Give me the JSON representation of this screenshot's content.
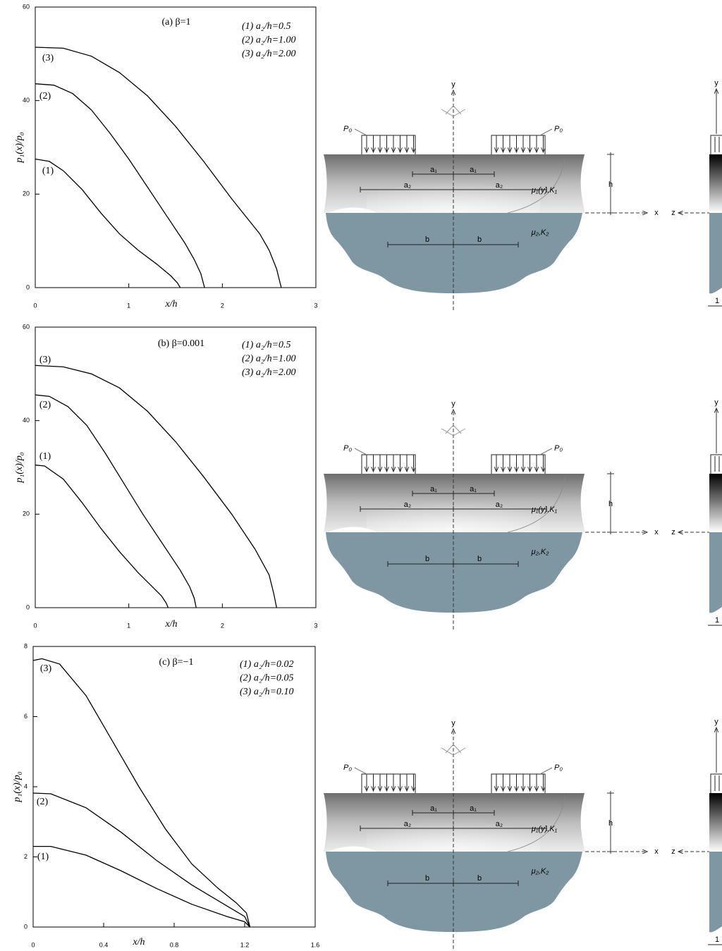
{
  "chart_data": [
    {
      "type": "line",
      "title": "(a) β=1",
      "x_label": "x/h",
      "y_label": "p₁(x)/p₀",
      "xlim": [
        0,
        3
      ],
      "ylim": [
        0,
        60
      ],
      "xticks": [
        0,
        1,
        2,
        3
      ],
      "yticks": [
        0,
        20,
        40,
        60
      ],
      "series": [
        {
          "name": "(1) a₂/h=0.5",
          "label": "(1)",
          "color": "#000000",
          "x": [
            0,
            0.15,
            0.3,
            0.5,
            0.7,
            0.9,
            1.1,
            1.3,
            1.45,
            1.52,
            1.55
          ],
          "values": [
            27.5,
            27,
            25,
            21,
            16,
            11.5,
            8,
            5,
            2.5,
            1,
            0
          ]
        },
        {
          "name": "(2) a₂/h=1.00",
          "label": "(2)",
          "color": "#000000",
          "x": [
            0,
            0.2,
            0.4,
            0.6,
            0.8,
            1.0,
            1.2,
            1.4,
            1.6,
            1.7,
            1.77,
            1.81
          ],
          "values": [
            43.6,
            43.3,
            41.5,
            38,
            33,
            27.5,
            21.5,
            15.5,
            9.5,
            6,
            3,
            0
          ]
        },
        {
          "name": "(3) a₂/h=2.00",
          "label": "(3)",
          "color": "#000000",
          "x": [
            0,
            0.3,
            0.6,
            0.9,
            1.2,
            1.5,
            1.8,
            2.1,
            2.4,
            2.5,
            2.58,
            2.63
          ],
          "values": [
            51.4,
            51.2,
            49.5,
            46,
            41,
            34.5,
            27,
            19,
            11.5,
            8,
            4,
            0
          ]
        }
      ]
    },
    {
      "type": "line",
      "title": "(b) β=0.001",
      "x_label": "x/h",
      "y_label": "p₁(x)/p₀",
      "xlim": [
        0,
        3
      ],
      "ylim": [
        0,
        60
      ],
      "xticks": [
        0,
        1,
        2,
        3
      ],
      "yticks": [
        0,
        20,
        40,
        60
      ],
      "series": [
        {
          "name": "(1) a₂/h=0.5",
          "label": "(1)",
          "color": "#000000",
          "x": [
            0,
            0.1,
            0.3,
            0.5,
            0.7,
            0.9,
            1.1,
            1.25,
            1.35,
            1.4,
            1.42
          ],
          "values": [
            30.5,
            30.3,
            27.5,
            22.5,
            17,
            12,
            7.5,
            4.5,
            2.5,
            1,
            0
          ]
        },
        {
          "name": "(2) a₂/h=1.00",
          "label": "(2)",
          "color": "#000000",
          "x": [
            0,
            0.15,
            0.35,
            0.55,
            0.75,
            0.95,
            1.15,
            1.35,
            1.55,
            1.65,
            1.7,
            1.72
          ],
          "values": [
            45.5,
            45.2,
            43,
            39,
            33,
            26.5,
            20,
            14,
            8,
            4.5,
            2,
            0
          ]
        },
        {
          "name": "(3) a₂/h=2.00",
          "label": "(3)",
          "color": "#000000",
          "x": [
            0,
            0.3,
            0.6,
            0.9,
            1.2,
            1.5,
            1.8,
            2.1,
            2.35,
            2.5,
            2.55,
            2.58
          ],
          "values": [
            51.8,
            51.5,
            50,
            47,
            42,
            35.5,
            28,
            20,
            12.5,
            7,
            3,
            0
          ]
        }
      ]
    },
    {
      "type": "line",
      "title": "(c) β=−1",
      "x_label": "x/h",
      "y_label": "p₁(x)/p₀",
      "xlim": [
        0,
        1.6
      ],
      "ylim": [
        0,
        8
      ],
      "xticks": [
        0,
        0.4,
        0.8,
        1.2,
        1.6
      ],
      "yticks": [
        0,
        2,
        4,
        6,
        8
      ],
      "series": [
        {
          "name": "(1) a₂/h=0.02",
          "label": "(1)",
          "color": "#000000",
          "x": [
            0,
            0.1,
            0.3,
            0.5,
            0.7,
            0.9,
            1.1,
            1.2,
            1.23
          ],
          "values": [
            2.3,
            2.3,
            2.05,
            1.6,
            1.1,
            0.65,
            0.3,
            0.15,
            0
          ]
        },
        {
          "name": "(2) a₂/h=0.05",
          "label": "(2)",
          "color": "#000000",
          "x": [
            0,
            0.1,
            0.3,
            0.5,
            0.7,
            0.9,
            1.1,
            1.2,
            1.23
          ],
          "values": [
            3.82,
            3.8,
            3.4,
            2.7,
            1.9,
            1.2,
            0.6,
            0.3,
            0
          ]
        },
        {
          "name": "(3) a₂/h=0.10",
          "label": "(3)",
          "color": "#000000",
          "x": [
            0,
            0.05,
            0.15,
            0.3,
            0.45,
            0.6,
            0.75,
            0.9,
            1.05,
            1.15,
            1.21,
            1.23
          ],
          "values": [
            7.6,
            7.65,
            7.5,
            6.6,
            5.3,
            4,
            2.8,
            1.8,
            1.1,
            0.7,
            0.4,
            0
          ]
        }
      ]
    }
  ],
  "diagram": {
    "y_axis": "y",
    "x_axis": "x",
    "z_axis": "z",
    "load": "P₀",
    "a1": "a₁",
    "a2": "a₂",
    "b": "b",
    "h": "h",
    "layer1": "μ₁(y),K₁",
    "layer2": "μ₂,K₂",
    "side_dim": "1"
  }
}
